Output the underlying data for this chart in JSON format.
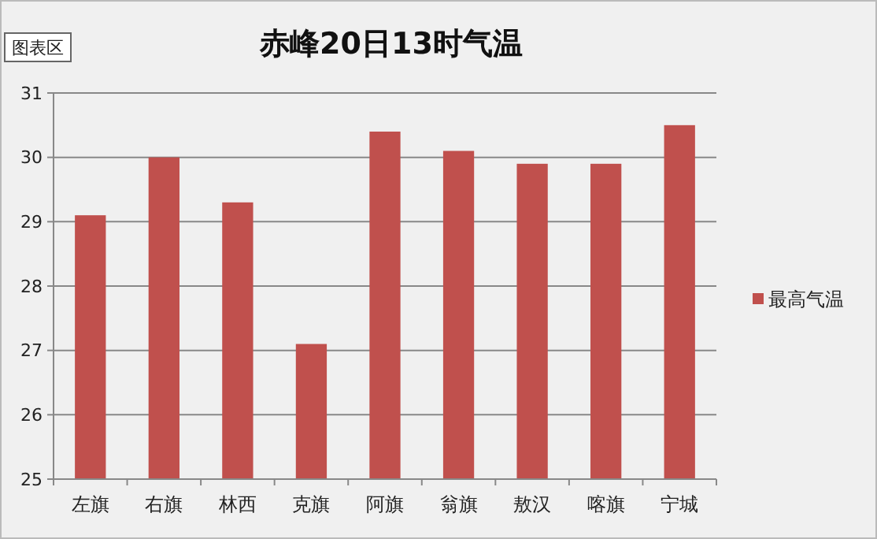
{
  "chart_data": {
    "type": "bar",
    "title": "赤峰20日13时气温",
    "categories": [
      "左旗",
      "右旗",
      "林西",
      "克旗",
      "阿旗",
      "翁旗",
      "敖汉",
      "喀旗",
      "宁城"
    ],
    "series": [
      {
        "name": "最高气温",
        "color": "#c0504d",
        "values": [
          29.1,
          30.0,
          29.3,
          27.1,
          30.4,
          30.1,
          29.9,
          29.9,
          30.5
        ]
      }
    ],
    "ylim": [
      25,
      31
    ],
    "yticks": [
      25,
      26,
      27,
      28,
      29,
      30,
      31
    ],
    "grid": "y",
    "legend": "right",
    "annotations": [
      "图表区"
    ]
  }
}
